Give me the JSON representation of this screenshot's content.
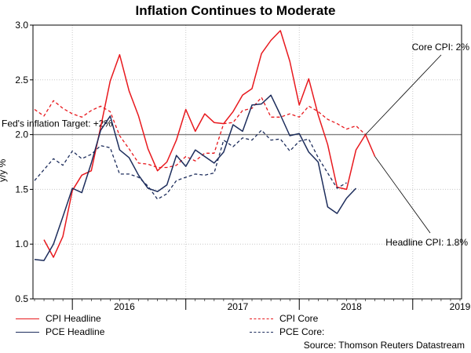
{
  "chart_data": {
    "type": "line",
    "title": "Inflation Continues to Moderate",
    "ylabel": "y/y %",
    "xlabel": "",
    "ylim": [
      0.5,
      3.0
    ],
    "yticks": [
      "0.5",
      "1.0",
      "1.5",
      "2.0",
      "2.5",
      "3.0"
    ],
    "x_start": "2015-09",
    "x_end": "2019-05",
    "year_labels": [
      {
        "label": "2016",
        "month_index": 9.5
      },
      {
        "label": "2017",
        "month_index": 21.5
      },
      {
        "label": "2018",
        "month_index": 33.5
      },
      {
        "label": "2019",
        "month_index": 45
      }
    ],
    "year_dividers": [
      4,
      16,
      28,
      40
    ],
    "target_line": {
      "value": 2.0,
      "label": "Fed's inflation Target: +2%"
    },
    "series": [
      {
        "name": "CPI Headline",
        "color": "#e8191e",
        "style": "solid",
        "start_month_index": 1,
        "values": [
          1.04,
          0.88,
          1.07,
          1.49,
          1.63,
          1.67,
          2.07,
          2.49,
          2.73,
          2.4,
          2.17,
          1.87,
          1.67,
          1.75,
          1.95,
          2.23,
          2.03,
          2.19,
          2.11,
          2.1,
          2.21,
          2.36,
          2.42,
          2.74,
          2.86,
          2.95,
          2.67,
          2.27,
          2.51,
          2.18,
          1.91,
          1.52,
          1.5,
          1.86,
          2.0,
          1.8
        ]
      },
      {
        "name": "CPI Core",
        "color": "#e8191e",
        "style": "dashed",
        "start_month_index": 0,
        "values": [
          2.23,
          2.17,
          2.31,
          2.24,
          2.19,
          2.16,
          2.22,
          2.26,
          2.21,
          1.99,
          1.87,
          1.74,
          1.73,
          1.7,
          1.7,
          1.72,
          1.8,
          1.76,
          1.83,
          1.83,
          2.1,
          2.11,
          2.22,
          2.24,
          2.34,
          2.16,
          2.16,
          2.19,
          2.16,
          2.26,
          2.21,
          2.14,
          2.1,
          2.05,
          2.08,
          2.0
        ]
      },
      {
        "name": "PCE Headline",
        "color": "#1d2d5c",
        "style": "solid",
        "start_month_index": 0,
        "values": [
          0.86,
          0.85,
          1.0,
          1.25,
          1.51,
          1.47,
          1.74,
          2.04,
          2.17,
          1.86,
          1.79,
          1.63,
          1.51,
          1.48,
          1.54,
          1.81,
          1.71,
          1.86,
          1.8,
          1.74,
          1.84,
          2.09,
          2.03,
          2.27,
          2.28,
          2.36,
          2.18,
          1.99,
          2.01,
          1.84,
          1.75,
          1.34,
          1.28,
          1.42,
          1.51
        ]
      },
      {
        "name": "PCE Core:",
        "color": "#1d2d5c",
        "style": "dashed",
        "start_month_index": 0,
        "values": [
          1.58,
          1.68,
          1.78,
          1.72,
          1.85,
          1.78,
          1.82,
          1.9,
          1.88,
          1.64,
          1.64,
          1.61,
          1.53,
          1.41,
          1.46,
          1.58,
          1.61,
          1.64,
          1.63,
          1.65,
          1.95,
          1.89,
          1.97,
          1.95,
          2.04,
          1.95,
          1.96,
          1.85,
          1.94,
          1.96,
          1.79,
          1.65,
          1.51,
          1.56
        ]
      }
    ],
    "annotations": [
      {
        "text": "Core CPI: 2%",
        "points_to": {
          "month_index": 35,
          "value": 2.0
        }
      },
      {
        "text": "Headline CPI: 1.8%",
        "points_to": {
          "month_index": 36,
          "value": 1.8
        }
      }
    ],
    "legend_position": "bottom",
    "source": "Source: Thomson Reuters Datastream"
  }
}
